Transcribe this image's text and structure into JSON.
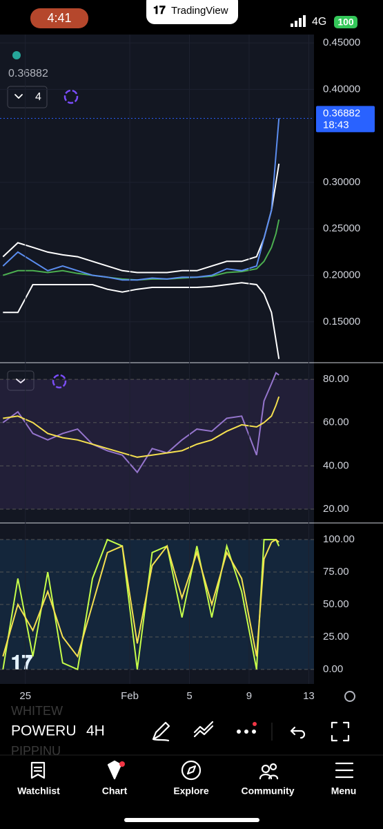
{
  "status_bar": {
    "time": "4:41",
    "app": "TradingView",
    "network": "4G",
    "battery": "100"
  },
  "chart_header": {
    "price": 0.36882,
    "indicator_count": "4"
  },
  "chart_data": [
    {
      "type": "line",
      "x": [
        -1.5,
        -0.5,
        0.5,
        1.5,
        2.5,
        3.5,
        4.5,
        5.5,
        6.5,
        7.5,
        8.5,
        9.5,
        10.5,
        11.5,
        12.5,
        13.5,
        14.5,
        15.5,
        16,
        16.5,
        16.8,
        17
      ],
      "xlim": [
        -1.7,
        19.35
      ],
      "ylim": [
        0.106,
        0.459
      ],
      "yticks": [
        {
          "value": 0.45,
          "label": "0.45000"
        },
        {
          "value": 0.4,
          "label": "0.40000"
        },
        {
          "value": 0.3,
          "label": "0.30000"
        },
        {
          "value": 0.25,
          "label": "0.25000"
        },
        {
          "value": 0.2,
          "label": "0.20000"
        },
        {
          "value": 0.15,
          "label": "0.15000"
        }
      ],
      "series": [
        {
          "color": "#ffffff",
          "values": [
            0.22,
            0.235,
            0.23,
            0.225,
            0.222,
            0.22,
            0.215,
            0.21,
            0.205,
            0.203,
            0.203,
            0.203,
            0.205,
            0.205,
            0.21,
            0.215,
            0.215,
            0.22,
            0.24,
            0.27,
            0.3,
            0.32
          ]
        },
        {
          "color": "#ffffff",
          "values": [
            0.16,
            0.16,
            0.19,
            0.19,
            0.19,
            0.19,
            0.19,
            0.185,
            0.182,
            0.185,
            0.187,
            0.187,
            0.187,
            0.187,
            0.188,
            0.19,
            0.192,
            0.19,
            0.18,
            0.16,
            0.13,
            0.11
          ]
        },
        {
          "color": "#4caf50",
          "values": [
            0.2,
            0.205,
            0.205,
            0.203,
            0.205,
            0.202,
            0.2,
            0.198,
            0.196,
            0.195,
            0.196,
            0.196,
            0.197,
            0.198,
            0.199,
            0.203,
            0.204,
            0.207,
            0.215,
            0.23,
            0.245,
            0.26
          ]
        },
        {
          "color": "#5b8def",
          "values": [
            0.21,
            0.225,
            0.215,
            0.205,
            0.21,
            0.205,
            0.2,
            0.198,
            0.195,
            0.195,
            0.197,
            0.196,
            0.198,
            0.198,
            0.2,
            0.207,
            0.205,
            0.21,
            0.24,
            0.27,
            0.33,
            0.36882
          ]
        }
      ],
      "last_price": {
        "value": 0.36882,
        "time": "18:43"
      }
    },
    {
      "type": "line",
      "x": [
        -1.5,
        -0.5,
        0.5,
        1.5,
        2.5,
        3.5,
        4.5,
        5.5,
        6.5,
        7.5,
        8.5,
        9.5,
        10.5,
        11.5,
        12.5,
        13.5,
        14.5,
        15.5,
        16,
        16.5,
        16.8,
        17
      ],
      "xlim": [
        -1.7,
        19.35
      ],
      "ylim": [
        13.6,
        87.7
      ],
      "yticks": [
        {
          "value": 80,
          "label": "80.00"
        },
        {
          "value": 60,
          "label": "60.00"
        },
        {
          "value": 40,
          "label": "40.00"
        },
        {
          "value": 20,
          "label": "20.00"
        }
      ],
      "series": [
        {
          "color": "#9575cd",
          "values": [
            60,
            65,
            55,
            52,
            55,
            57,
            50,
            47,
            45,
            37,
            48,
            46,
            52,
            57,
            56,
            62,
            63,
            45,
            70,
            78,
            83,
            82
          ]
        },
        {
          "color": "#f5e050",
          "values": [
            62,
            63,
            60,
            55,
            53,
            52,
            50,
            48,
            46,
            44,
            45,
            46,
            47,
            50,
            52,
            56,
            59,
            58,
            60,
            63,
            68,
            72
          ]
        }
      ]
    },
    {
      "type": "line",
      "x": [
        -1.5,
        -0.5,
        0.5,
        1.5,
        2.5,
        3.5,
        4.5,
        5.5,
        6.5,
        7.5,
        8.5,
        9.5,
        10.5,
        11.5,
        12.5,
        13.5,
        14.5,
        15.5,
        16,
        16.5,
        16.8,
        17
      ],
      "xlim": [
        -1.7,
        19.35
      ],
      "ylim": [
        -11.2,
        112.8
      ],
      "yticks": [
        {
          "value": 100,
          "label": "100.00"
        },
        {
          "value": 75,
          "label": "75.00"
        },
        {
          "value": 50,
          "label": "50.00"
        },
        {
          "value": 25,
          "label": "25.00"
        },
        {
          "value": 0,
          "label": "0.00"
        }
      ],
      "xticks": [
        {
          "value": 0,
          "label": "25"
        },
        {
          "value": 7,
          "label": "Feb"
        },
        {
          "value": 11,
          "label": "5"
        },
        {
          "value": 15,
          "label": "9"
        },
        {
          "value": 19,
          "label": "13"
        }
      ],
      "series": [
        {
          "color": "#c6ff4a",
          "values": [
            0,
            70,
            10,
            75,
            5,
            0,
            70,
            100,
            95,
            0,
            90,
            95,
            40,
            95,
            40,
            95,
            60,
            0,
            100,
            100,
            100,
            95
          ]
        },
        {
          "color": "#f5e050",
          "values": [
            10,
            50,
            30,
            60,
            25,
            10,
            50,
            90,
            95,
            20,
            80,
            95,
            55,
            90,
            50,
            90,
            70,
            10,
            85,
            98,
            100,
            98
          ]
        }
      ]
    }
  ],
  "toolbar": {
    "symbol_above": "WHITEW",
    "symbol": "POWERU",
    "symbol_below": "PIPPINU",
    "interval": "4H"
  },
  "nav": [
    "Watchlist",
    "Chart",
    "Explore",
    "Community",
    "Menu"
  ]
}
